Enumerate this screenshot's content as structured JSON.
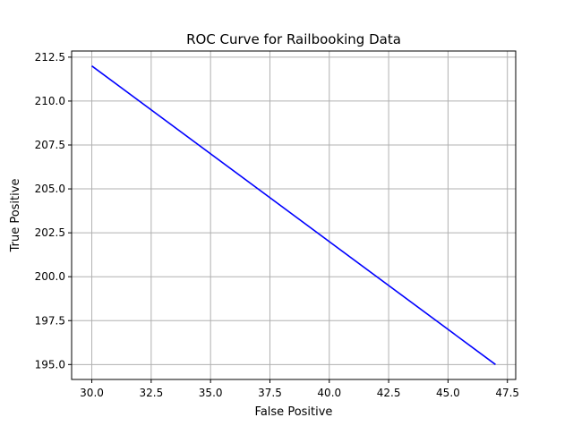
{
  "chart_data": {
    "type": "line",
    "title": "ROC Curve for Railbooking Data",
    "xlabel": "False Positive",
    "ylabel": "True Positive",
    "xlim": [
      29.15,
      47.85
    ],
    "ylim": [
      194.15,
      212.85
    ],
    "xticks": [
      30.0,
      32.5,
      35.0,
      37.5,
      40.0,
      42.5,
      45.0,
      47.5
    ],
    "xtick_labels": [
      "30.0",
      "32.5",
      "35.0",
      "37.5",
      "40.0",
      "42.5",
      "45.0",
      "47.5"
    ],
    "yticks": [
      195.0,
      197.5,
      200.0,
      202.5,
      205.0,
      207.5,
      210.0,
      212.5
    ],
    "ytick_labels": [
      "195.0",
      "197.5",
      "200.0",
      "202.5",
      "205.0",
      "207.5",
      "210.0",
      "212.5"
    ],
    "grid": true,
    "series": [
      {
        "color": "#0000ff",
        "x": [
          30,
          47
        ],
        "y": [
          212,
          195
        ]
      }
    ]
  }
}
